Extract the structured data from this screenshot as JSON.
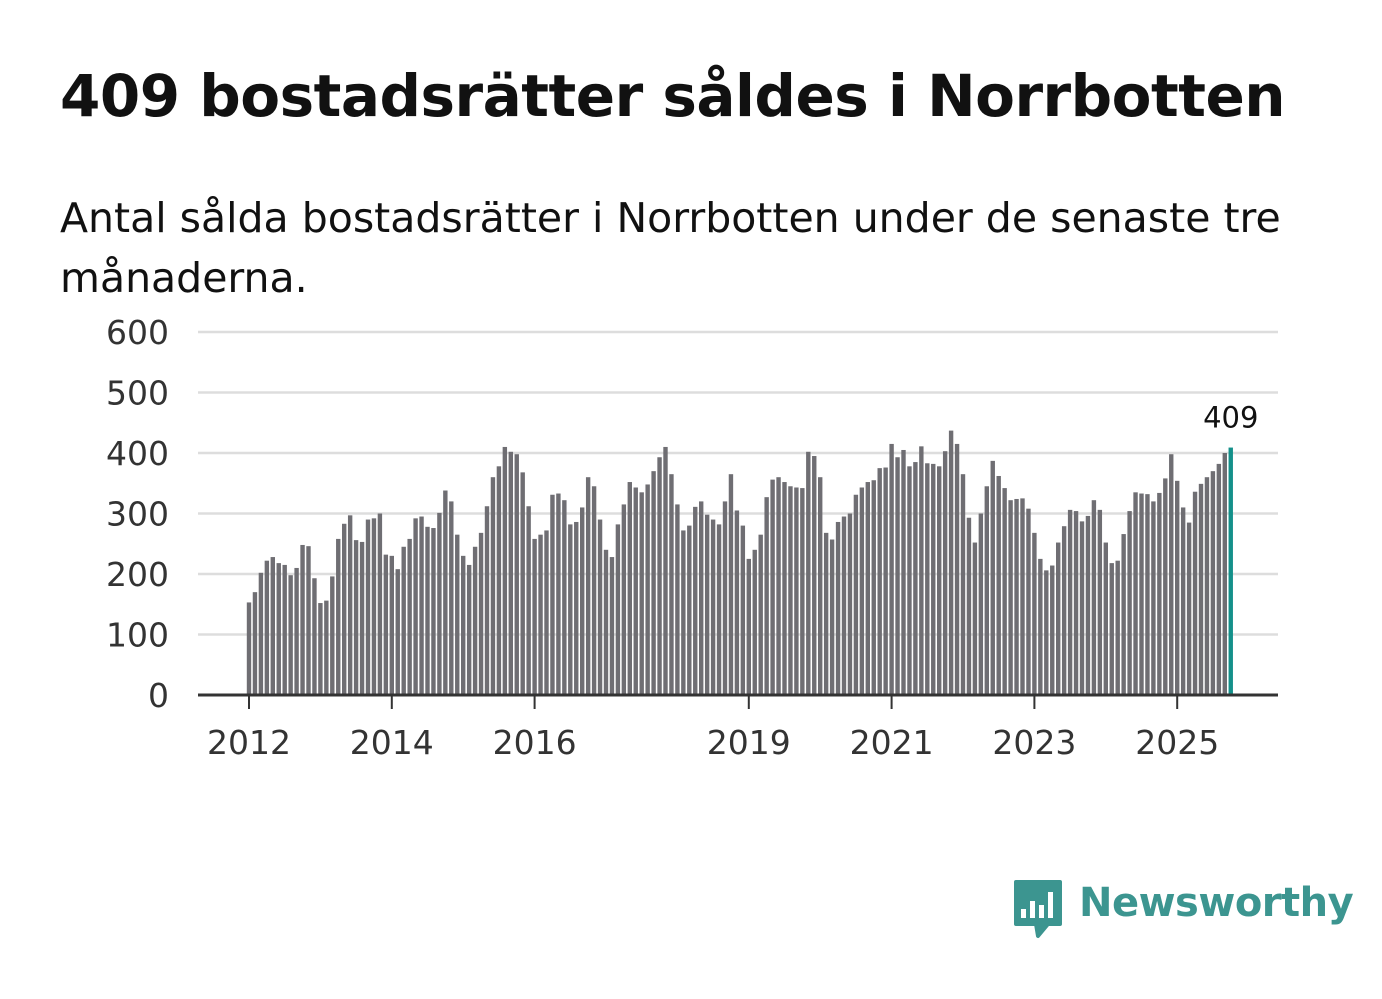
{
  "header": {
    "title": "409 bostadsrätter såldes i Norrbotten",
    "subtitle": "Antal sålda bostadsrätter i Norrbotten under de senaste tre månaderna."
  },
  "brand": {
    "name": "Newsworthy"
  },
  "colors": {
    "bar": "#6f6e73",
    "highlight": "#14908a",
    "grid": "#dddddd",
    "axis": "#333333"
  },
  "chart_data": {
    "type": "bar",
    "title": "409 bostadsrätter såldes i Norrbotten",
    "xlabel": "",
    "ylabel": "",
    "ylim": [
      0,
      600
    ],
    "yticks": [
      "0",
      "100",
      "200",
      "300",
      "400",
      "500",
      "600"
    ],
    "xticks": [
      {
        "label": "2012",
        "index": 0
      },
      {
        "label": "2014",
        "index": 24
      },
      {
        "label": "2016",
        "index": 48
      },
      {
        "label": "2019",
        "index": 84
      },
      {
        "label": "2021",
        "index": 108
      },
      {
        "label": "2023",
        "index": 132
      },
      {
        "label": "2025",
        "index": 156
      }
    ],
    "grid": true,
    "highlight_label": "409",
    "values": [
      153,
      170,
      202,
      222,
      228,
      218,
      215,
      198,
      210,
      248,
      246,
      193,
      152,
      156,
      196,
      258,
      283,
      297,
      256,
      253,
      290,
      292,
      300,
      232,
      230,
      208,
      245,
      258,
      292,
      295,
      278,
      276,
      301,
      338,
      320,
      265,
      230,
      215,
      245,
      268,
      312,
      360,
      378,
      410,
      402,
      398,
      368,
      312,
      258,
      265,
      272,
      331,
      333,
      322,
      282,
      286,
      310,
      360,
      345,
      290,
      240,
      228,
      282,
      315,
      352,
      343,
      335,
      348,
      370,
      393,
      410,
      365,
      315,
      272,
      280,
      311,
      320,
      298,
      290,
      282,
      320,
      365,
      305,
      280,
      225,
      240,
      265,
      327,
      356,
      360,
      352,
      345,
      343,
      342,
      402,
      395,
      360,
      268,
      257,
      286,
      295,
      300,
      331,
      343,
      352,
      355,
      375,
      376,
      415,
      393,
      405,
      378,
      385,
      411,
      383,
      382,
      378,
      403,
      437,
      415,
      365,
      293,
      252,
      300,
      345,
      387,
      362,
      342,
      322,
      324,
      325,
      308,
      268,
      225,
      206,
      214,
      252,
      279,
      306,
      304,
      287,
      296,
      322,
      306,
      252,
      218,
      222,
      266,
      304,
      335,
      333,
      332,
      320,
      334,
      358,
      398,
      354,
      310,
      285,
      336,
      349,
      360,
      370,
      382,
      400,
      409
    ]
  }
}
